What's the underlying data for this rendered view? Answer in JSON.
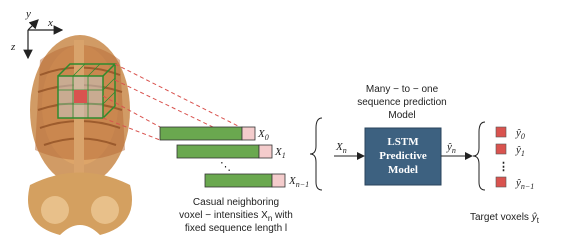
{
  "axes": {
    "y": "y",
    "x": "x",
    "z": "z"
  },
  "sequences": [
    {
      "symbol": "X",
      "subscript": "0"
    },
    {
      "symbol": "X",
      "subscript": "1"
    },
    {
      "symbol": "X",
      "subscript": "n−1"
    }
  ],
  "sequence_caption": {
    "line1": "Casual neighboring",
    "line2": {
      "before": "voxel − intensities X",
      "subscript": "n",
      "after": " with"
    },
    "line3": "fixed sequence length l"
  },
  "model_caption": [
    "Many − to − one",
    "sequence prediction",
    "Model"
  ],
  "input": {
    "symbol": "X",
    "subscript": "n"
  },
  "model": [
    "LSTM",
    "Predictive",
    "Model"
  ],
  "output": {
    "symbol": "ŷ",
    "subscript": "n"
  },
  "targets": [
    {
      "symbol": "ŷ",
      "subscript": "0"
    },
    {
      "symbol": "ŷ",
      "subscript": "1"
    },
    {
      "symbol": "ŷ",
      "subscript": "n−1"
    }
  ],
  "target_caption": {
    "text": "Target voxels ",
    "symbol": "ŷ",
    "subscript": "t"
  }
}
